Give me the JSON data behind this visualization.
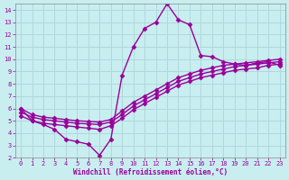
{
  "xlabel": "Windchill (Refroidissement éolien,°C)",
  "bg_color": "#c8eef0",
  "line_color": "#990099",
  "marker": "D",
  "markersize": 2.5,
  "linewidth": 1.0,
  "xlim": [
    -0.5,
    23.5
  ],
  "ylim": [
    2,
    14.5
  ],
  "xticks": [
    0,
    1,
    2,
    3,
    4,
    5,
    6,
    7,
    8,
    9,
    10,
    11,
    12,
    13,
    14,
    15,
    16,
    17,
    18,
    19,
    20,
    21,
    22,
    23
  ],
  "yticks": [
    2,
    3,
    4,
    5,
    6,
    7,
    8,
    9,
    10,
    11,
    12,
    13,
    14
  ],
  "grid_color": "#b0d8dc",
  "lines": [
    {
      "x": [
        0,
        1,
        2,
        3,
        4,
        5,
        6,
        7,
        8,
        9,
        10,
        11,
        12,
        13,
        14,
        15,
        16,
        17,
        18,
        19,
        20,
        21,
        22,
        23
      ],
      "y": [
        6,
        5,
        4.7,
        4.3,
        3.5,
        3.3,
        3.1,
        2.2,
        3.5,
        8.7,
        11.0,
        12.5,
        13.0,
        14.5,
        13.2,
        12.8,
        10.3,
        10.2,
        9.8,
        9.6,
        9.5,
        9.7,
        9.8,
        9.5
      ]
    },
    {
      "x": [
        0,
        1,
        2,
        3,
        4,
        5,
        6,
        7,
        8,
        9,
        10,
        11,
        12,
        13,
        14,
        15,
        16,
        17,
        18,
        19,
        20,
        21,
        22,
        23
      ],
      "y": [
        6,
        5.5,
        5.3,
        5.2,
        5.1,
        5.0,
        4.95,
        4.9,
        5.1,
        5.8,
        6.5,
        7.0,
        7.5,
        8.0,
        8.5,
        8.8,
        9.1,
        9.3,
        9.5,
        9.6,
        9.7,
        9.8,
        9.9,
        10.0
      ]
    },
    {
      "x": [
        0,
        1,
        2,
        3,
        4,
        5,
        6,
        7,
        8,
        9,
        10,
        11,
        12,
        13,
        14,
        15,
        16,
        17,
        18,
        19,
        20,
        21,
        22,
        23
      ],
      "y": [
        5.7,
        5.3,
        5.1,
        5.0,
        4.9,
        4.8,
        4.75,
        4.7,
        4.9,
        5.5,
        6.2,
        6.7,
        7.2,
        7.7,
        8.2,
        8.5,
        8.8,
        9.0,
        9.2,
        9.4,
        9.5,
        9.6,
        9.7,
        9.8
      ]
    },
    {
      "x": [
        0,
        1,
        2,
        3,
        4,
        5,
        6,
        7,
        8,
        9,
        10,
        11,
        12,
        13,
        14,
        15,
        16,
        17,
        18,
        19,
        20,
        21,
        22,
        23
      ],
      "y": [
        5.4,
        5.0,
        4.8,
        4.7,
        4.6,
        4.5,
        4.4,
        4.3,
        4.6,
        5.2,
        5.9,
        6.4,
        6.9,
        7.4,
        7.9,
        8.2,
        8.5,
        8.7,
        8.9,
        9.1,
        9.2,
        9.3,
        9.5,
        9.6
      ]
    }
  ]
}
